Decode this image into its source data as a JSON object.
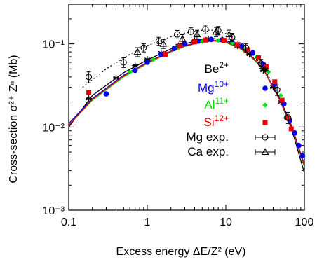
{
  "chart_data": {
    "type": "scatter",
    "title": "",
    "xlabel": "Excess energy ΔE/Z² (eV)",
    "ylabel": "Cross-section σ²⁺ Zⁿ (Mb)",
    "xscale": "log",
    "yscale": "log",
    "xlim": [
      0.1,
      100
    ],
    "ylim": [
      0.001,
      0.3
    ],
    "x_ticks": [
      0.1,
      1,
      10,
      100
    ],
    "x_tick_labels": [
      "0.1",
      "1",
      "10",
      "100"
    ],
    "y_ticks": [
      0.001,
      0.01,
      0.1
    ],
    "y_tick_labels": [
      "10⁻³",
      "10⁻²",
      "10⁻¹"
    ],
    "legend_position": "right",
    "series": [
      {
        "label_base": "Be",
        "label_sup": "2+",
        "label_color": "#000000",
        "marker": "asterisk",
        "color": "#000000",
        "line": "solid",
        "points": [
          [
            0.18,
            0.022
          ],
          [
            0.4,
            0.039
          ],
          [
            0.7,
            0.055
          ],
          [
            1.0,
            0.065
          ],
          [
            1.5,
            0.078
          ],
          [
            2.5,
            0.095
          ],
          [
            4.0,
            0.11
          ],
          [
            6.0,
            0.115
          ],
          [
            9.0,
            0.112
          ],
          [
            14,
            0.095
          ],
          [
            20,
            0.075
          ],
          [
            30,
            0.048
          ],
          [
            40,
            0.03
          ],
          [
            50,
            0.02
          ],
          [
            60,
            0.013
          ]
        ],
        "curve": [
          [
            0.1,
            0.01
          ],
          [
            0.2,
            0.024
          ],
          [
            0.5,
            0.045
          ],
          [
            1.0,
            0.064
          ],
          [
            2.0,
            0.087
          ],
          [
            3.0,
            0.1
          ],
          [
            5.0,
            0.113
          ],
          [
            7.0,
            0.116
          ],
          [
            10.0,
            0.11
          ],
          [
            15,
            0.093
          ],
          [
            20,
            0.076
          ],
          [
            30,
            0.05
          ],
          [
            50,
            0.02
          ],
          [
            70,
            0.009
          ],
          [
            100,
            0.0028
          ]
        ]
      },
      {
        "label_base": "Mg",
        "label_sup": "10+",
        "label_color": "#0000ff",
        "marker": "circle",
        "color": "#0000ee",
        "line": "solid",
        "points": [
          [
            0.3,
            0.025
          ],
          [
            0.7,
            0.048
          ],
          [
            1.0,
            0.06
          ],
          [
            1.5,
            0.075
          ],
          [
            2.2,
            0.088
          ],
          [
            3.0,
            0.1
          ],
          [
            4.5,
            0.108
          ],
          [
            6.5,
            0.113
          ],
          [
            9.0,
            0.112
          ],
          [
            12,
            0.105
          ],
          [
            16,
            0.094
          ],
          [
            22,
            0.078
          ],
          [
            30,
            0.057
          ],
          [
            42,
            0.033
          ],
          [
            55,
            0.019
          ],
          [
            65,
            0.012
          ],
          [
            75,
            0.0085
          ],
          [
            85,
            0.006
          ],
          [
            95,
            0.0045
          ]
        ],
        "curve": [
          [
            0.1,
            0.011
          ],
          [
            0.2,
            0.022
          ],
          [
            0.5,
            0.042
          ],
          [
            1.0,
            0.06
          ],
          [
            2.0,
            0.082
          ],
          [
            3.0,
            0.095
          ],
          [
            5.0,
            0.107
          ],
          [
            7.0,
            0.11
          ],
          [
            10.0,
            0.106
          ],
          [
            15,
            0.09
          ],
          [
            20,
            0.075
          ],
          [
            30,
            0.05
          ],
          [
            50,
            0.021
          ],
          [
            70,
            0.01
          ],
          [
            100,
            0.0035
          ]
        ]
      },
      {
        "label_base": "Al",
        "label_sup": "11+",
        "label_color": "#00dd00",
        "marker": "diamond",
        "color": "#00dd00",
        "line": "solid",
        "points": [
          [
            0.6,
            0.046
          ],
          [
            1.2,
            0.065
          ],
          [
            2.5,
            0.09
          ],
          [
            5.0,
            0.107
          ],
          [
            8.0,
            0.11
          ],
          [
            12,
            0.102
          ],
          [
            18,
            0.087
          ],
          [
            25,
            0.07
          ],
          [
            35,
            0.046
          ],
          [
            50,
            0.024
          ]
        ],
        "curve": [
          [
            0.1,
            0.0105
          ],
          [
            0.2,
            0.021
          ],
          [
            0.5,
            0.04
          ],
          [
            1.0,
            0.058
          ],
          [
            2.0,
            0.08
          ],
          [
            3.0,
            0.093
          ],
          [
            5.0,
            0.105
          ],
          [
            7.0,
            0.108
          ],
          [
            10.0,
            0.104
          ],
          [
            15,
            0.088
          ],
          [
            20,
            0.073
          ],
          [
            30,
            0.049
          ],
          [
            50,
            0.02
          ],
          [
            70,
            0.0095
          ],
          [
            100,
            0.0033
          ]
        ]
      },
      {
        "label_base": "Si",
        "label_sup": "12+",
        "label_color": "#ff0000",
        "marker": "square",
        "color": "#ee0000",
        "line": "solid",
        "points": [
          [
            0.18,
            0.026
          ],
          [
            1.7,
            0.075
          ],
          [
            2.6,
            0.095
          ],
          [
            4.0,
            0.106
          ],
          [
            5.5,
            0.111
          ],
          [
            9.5,
            0.11
          ],
          [
            14,
            0.098
          ],
          [
            19,
            0.085
          ],
          [
            26,
            0.068
          ],
          [
            33,
            0.053
          ],
          [
            42,
            0.035
          ],
          [
            52,
            0.021
          ],
          [
            62,
            0.0128
          ],
          [
            68,
            0.0095
          ]
        ],
        "curve": [
          [
            0.1,
            0.0105
          ],
          [
            0.2,
            0.0215
          ],
          [
            0.5,
            0.041
          ],
          [
            1.0,
            0.059
          ],
          [
            2.0,
            0.081
          ],
          [
            3.0,
            0.094
          ],
          [
            5.0,
            0.106
          ],
          [
            7.0,
            0.109
          ],
          [
            10.0,
            0.105
          ],
          [
            15,
            0.089
          ],
          [
            20,
            0.074
          ],
          [
            30,
            0.05
          ],
          [
            50,
            0.02
          ],
          [
            70,
            0.0098
          ],
          [
            100,
            0.0034
          ]
        ]
      },
      {
        "label_base": "Mg exp.",
        "label_sup": "",
        "label_color": "#000000",
        "marker": "open-circle",
        "color": "#000000",
        "line": "dotted",
        "points": [
          [
            0.18,
            0.04
          ],
          [
            0.5,
            0.06
          ],
          [
            0.9,
            0.09
          ],
          [
            1.4,
            0.108
          ],
          [
            2.4,
            0.13
          ],
          [
            3.6,
            0.14
          ],
          [
            5.5,
            0.15
          ],
          [
            8.0,
            0.145
          ],
          [
            12,
            0.12
          ],
          [
            18,
            0.09
          ],
          [
            28,
            0.058
          ],
          [
            45,
            0.028
          ],
          [
            62,
            0.013
          ]
        ],
        "errors": [
          0.006,
          0.008,
          0.01,
          0.012,
          0.015,
          0.016,
          0.018,
          0.017,
          0.014,
          0.01,
          0.007,
          0.004,
          0.002
        ],
        "curve": [
          [
            0.15,
            0.03
          ],
          [
            0.3,
            0.05
          ],
          [
            0.6,
            0.075
          ],
          [
            1.0,
            0.095
          ],
          [
            2.0,
            0.122
          ],
          [
            3.0,
            0.135
          ],
          [
            5.0,
            0.146
          ],
          [
            7.0,
            0.146
          ],
          [
            10.0,
            0.133
          ],
          [
            15,
            0.104
          ],
          [
            20,
            0.082
          ],
          [
            30,
            0.053
          ],
          [
            50,
            0.022
          ],
          [
            70,
            0.009
          ]
        ]
      },
      {
        "label_base": "Ca exp.",
        "label_sup": "",
        "label_color": "#000000",
        "marker": "open-triangle",
        "color": "#000000",
        "line": "none",
        "points": [
          [
            0.75,
            0.08
          ],
          [
            1.6,
            0.1
          ],
          [
            2.8,
            0.115
          ],
          [
            4.3,
            0.13
          ],
          [
            7.5,
            0.14
          ],
          [
            11,
            0.13
          ]
        ],
        "errors": [
          0.01,
          0.012,
          0.014,
          0.016,
          0.018,
          0.016
        ]
      }
    ]
  }
}
